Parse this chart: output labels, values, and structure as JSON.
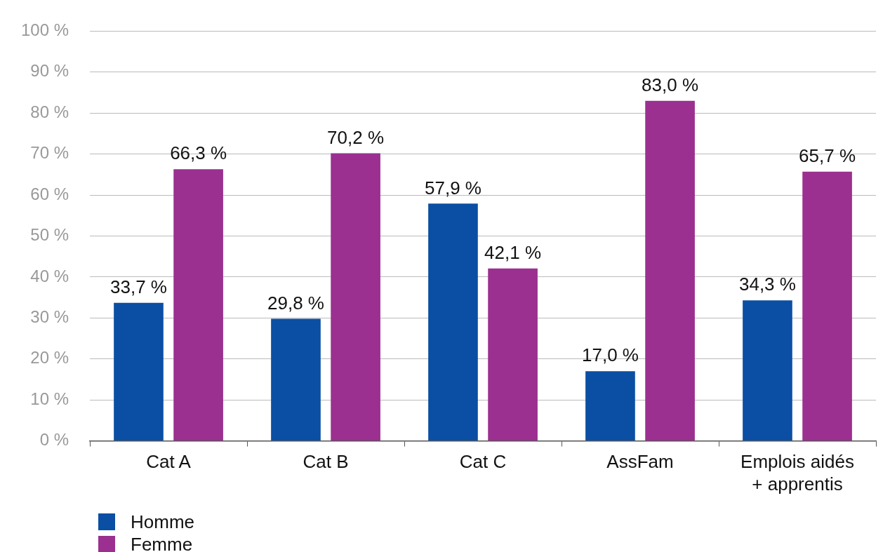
{
  "chart_data": {
    "type": "bar",
    "categories": [
      "Cat A",
      "Cat B",
      "Cat C",
      "AssFam",
      "Emplois aidés\n+ apprentis"
    ],
    "series": [
      {
        "name": "Homme",
        "color": "#0a4fa3",
        "values": [
          33.7,
          29.8,
          57.9,
          17.0,
          34.3
        ],
        "value_labels": [
          "33,7 %",
          "29,8 %",
          "57,9 %",
          "17,0 %",
          "34,3 %"
        ]
      },
      {
        "name": "Femme",
        "color": "#9b3090",
        "values": [
          66.3,
          70.2,
          42.1,
          83.0,
          65.7
        ],
        "value_labels": [
          "66,3 %",
          "70,2 %",
          "42,1 %",
          "83,0 %",
          "65,7 %"
        ]
      }
    ],
    "ylim": [
      0,
      100
    ],
    "yticks": [
      {
        "value": 0,
        "label": "0 %"
      },
      {
        "value": 10,
        "label": "10 %"
      },
      {
        "value": 20,
        "label": "20 %"
      },
      {
        "value": 30,
        "label": "30 %"
      },
      {
        "value": 40,
        "label": "40 %"
      },
      {
        "value": 50,
        "label": "50 %"
      },
      {
        "value": 60,
        "label": "60 %"
      },
      {
        "value": 70,
        "label": "70 %"
      },
      {
        "value": 80,
        "label": "80 %"
      },
      {
        "value": 90,
        "label": "90 %"
      },
      {
        "value": 100,
        "label": "100 %"
      }
    ],
    "grid": "y",
    "legend": "bottom left"
  }
}
